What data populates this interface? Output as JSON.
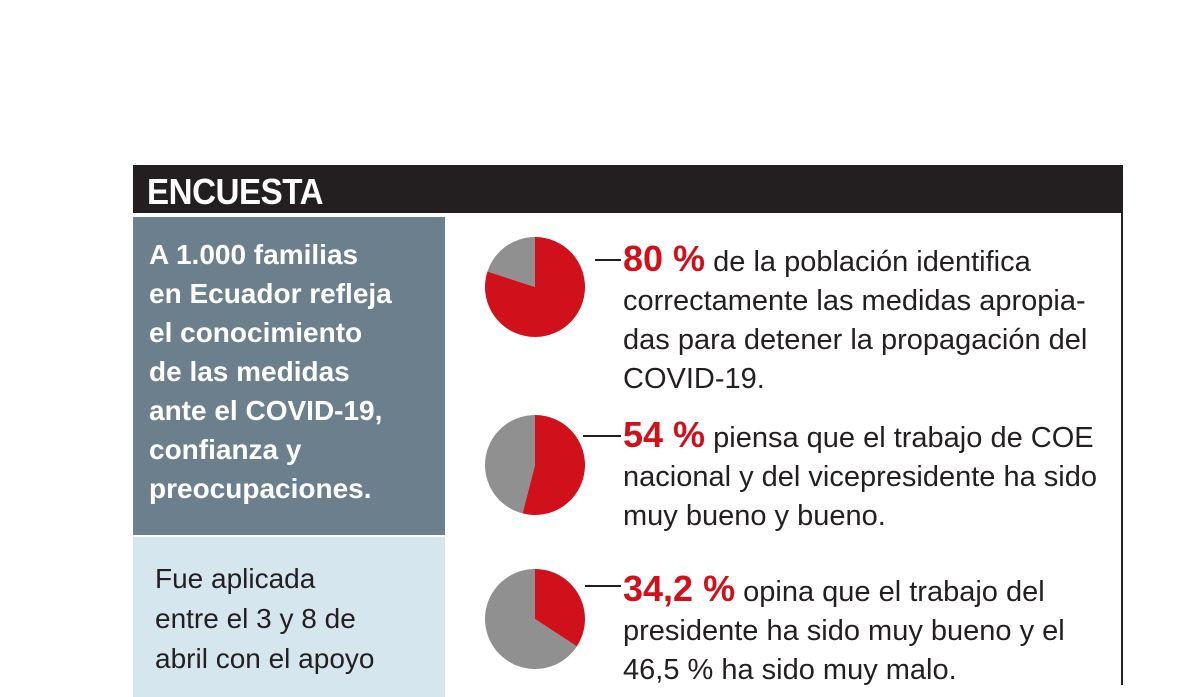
{
  "header": {
    "title": "ENCUESTA"
  },
  "intro": {
    "lines": [
      "A 1.000 familias",
      "en Ecuador refleja",
      "el conocimiento",
      "de las medidas",
      "ante el COVID-19,",
      "confianza y",
      "preocupaciones."
    ]
  },
  "method": {
    "lines": [
      "Fue aplicada",
      "entre el 3 y 8 de",
      "abril con el apoyo"
    ]
  },
  "colors": {
    "accent": "#d0111b",
    "rest": "#909090",
    "header": "#231f20"
  },
  "chart_data": [
    {
      "type": "pie",
      "values": [
        80,
        20
      ],
      "label": "80 %",
      "text_lines": [
        "de la población identifica",
        "correctamente las medidas apropia-",
        "das para detener la propagación del",
        "COVID-19."
      ]
    },
    {
      "type": "pie",
      "values": [
        54,
        46
      ],
      "label": "54 %",
      "text_lines": [
        "piensa que el trabajo de COE",
        "nacional y del vicepresidente ha sido",
        "muy bueno y bueno."
      ]
    },
    {
      "type": "pie",
      "values": [
        34.2,
        65.8
      ],
      "label": "34,2 %",
      "text_lines": [
        "opina que el trabajo del",
        "presidente ha sido muy bueno y el",
        "46,5 % ha sido muy malo."
      ]
    }
  ]
}
